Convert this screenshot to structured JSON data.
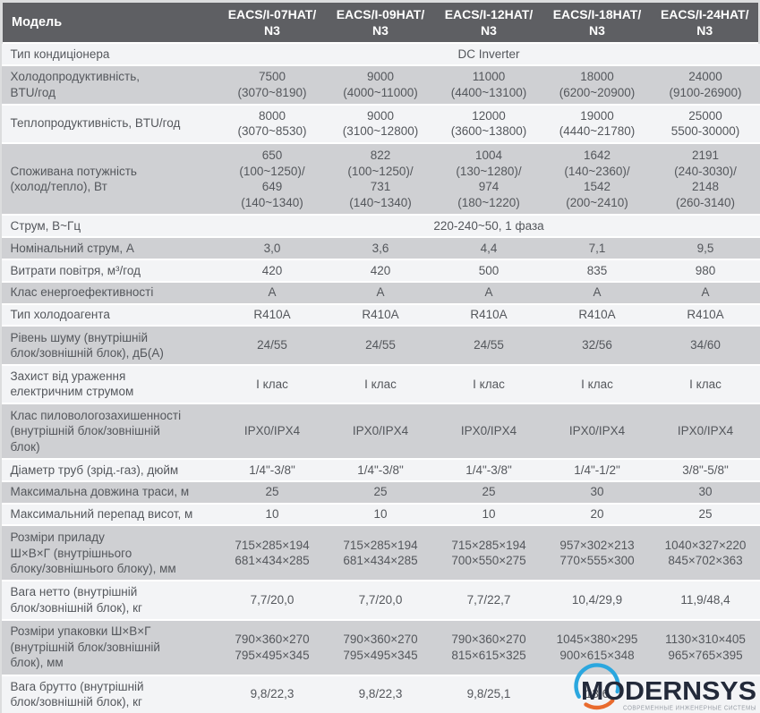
{
  "colors": {
    "header_bg": "#5e5f63",
    "header_text": "#ffffff",
    "row_light": "#f3f4f6",
    "row_dark": "#cfd0d3",
    "body_text": "#54575c",
    "separator": "#ffffff",
    "logo_blue": "#2ba7df",
    "logo_orange": "#e96b2e",
    "logo_wordmark": "#232a3a",
    "logo_tagline": "#9ba0a8"
  },
  "table": {
    "header": {
      "label": "Модель",
      "models": [
        "EACS/I-07HAT/\nN3",
        "EACS/I-09HAT/\nN3",
        "EACS/I-12HAT/\nN3",
        "EACS/I-18HAT/\nN3",
        "EACS/I-24HAT/\nN3"
      ]
    },
    "rows": [
      {
        "label": "Тип кондиціонера",
        "span": "DC Inverter"
      },
      {
        "label": "Холодопродуктивність,\nBTU/год",
        "values": [
          "7500\n(3070~8190)",
          "9000\n(4000~11000)",
          "11000\n(4400~13100)",
          "18000\n(6200~20900)",
          "24000\n(9100-26900)"
        ]
      },
      {
        "label": "Теплопродуктивність, BTU/год",
        "values": [
          "8000\n(3070~8530)",
          "9000\n(3100~12800)",
          "12000\n(3600~13800)",
          "19000\n(4440~21780)",
          "25000\n5500-30000)"
        ]
      },
      {
        "label": "Споживана потужність\n(холод/тепло), Вт",
        "values": [
          "650\n(100~1250)/\n649\n(140~1340)",
          "822\n(100~1250)/\n731\n(140~1340)",
          "1004\n(130~1280)/\n974\n(180~1220)",
          "1642\n(140~2360)/\n1542\n(200~2410)",
          "2191\n(240-3030)/\n2148\n(260-3140)"
        ]
      },
      {
        "label": "Струм, В~Гц",
        "span": "220-240~50, 1 фаза"
      },
      {
        "label": "Номінальний струм, А",
        "values": [
          "3,0",
          "3,6",
          "4,4",
          "7,1",
          "9,5"
        ]
      },
      {
        "label": "Витрати повітря, м³/год",
        "values": [
          "420",
          "420",
          "500",
          "835",
          "980"
        ]
      },
      {
        "label": "Клас енергоефективності",
        "values": [
          "A",
          "A",
          "A",
          "A",
          "A"
        ]
      },
      {
        "label": "Тип холодоагента",
        "values": [
          "R410A",
          "R410A",
          "R410A",
          "R410A",
          "R410A"
        ]
      },
      {
        "label": "Рівень шуму (внутрішній\nблок/зовнішній блок), дБ(А)",
        "values": [
          "24/55",
          "24/55",
          "24/55",
          "32/56",
          "34/60"
        ]
      },
      {
        "label": "Захист від ураження\nелектричним струмом",
        "values": [
          "І клас",
          "І клас",
          "І клас",
          "І клас",
          "І клас"
        ]
      },
      {
        "label": "Клас пиловологозахишенності\n(внутрішній блок/зовнішній\nблок)",
        "values": [
          "IPX0/IPX4",
          "IPX0/IPX4",
          "IPX0/IPX4",
          "IPX0/IPX4",
          "IPX0/IPX4"
        ]
      },
      {
        "label": "Діаметр труб (зрід.-газ), дюйм",
        "values": [
          "1/4\"-3/8\"",
          "1/4\"-3/8\"",
          "1/4\"-3/8\"",
          "1/4\"-1/2\"",
          "3/8\"-5/8\""
        ]
      },
      {
        "label": "Максимальна довжина траси, м",
        "values": [
          "25",
          "25",
          "25",
          "30",
          "30"
        ]
      },
      {
        "label": "Максимальний перепад висот, м",
        "values": [
          "10",
          "10",
          "10",
          "20",
          "25"
        ]
      },
      {
        "label": "Розміри приладу\nШ×В×Г (внутрішнього\nблоку/зовнішнього блоку), мм",
        "values": [
          "715×285×194\n681×434×285",
          "715×285×194\n681×434×285",
          "715×285×194\n700×550×275",
          "957×302×213\n770×555×300",
          "1040×327×220\n845×702×363"
        ]
      },
      {
        "label": "Вага нетто (внутрішній\nблок/зовнішній блок), кг",
        "values": [
          "7,7/20,0",
          "7,7/20,0",
          "7,7/22,7",
          "10,4/29,9",
          "11,9/48,4"
        ]
      },
      {
        "label": "Розміри упаковки Ш×В×Г\n(внутрішній блок/зовнішній\nблок), мм",
        "values": [
          "790×360×270\n795×495×345",
          "790×360×270\n795×495×345",
          "790×360×270\n815×615×325",
          "1045×380×295\n900×615×348",
          "1130×310×405\n965×765×395"
        ]
      },
      {
        "label": "Вага брутто (внутрішній\nблок/зовнішній блок), кг",
        "values": [
          "9,8/22,3",
          "9,8/22,3",
          "9,8/25,1",
          "13,6",
          ""
        ]
      }
    ]
  },
  "logo": {
    "wordmark": "MODERNSYS",
    "tagline": "СОВРЕМЕННЫЕ ИНЖЕНЕРНЫЕ СИСТЕМЫ"
  }
}
